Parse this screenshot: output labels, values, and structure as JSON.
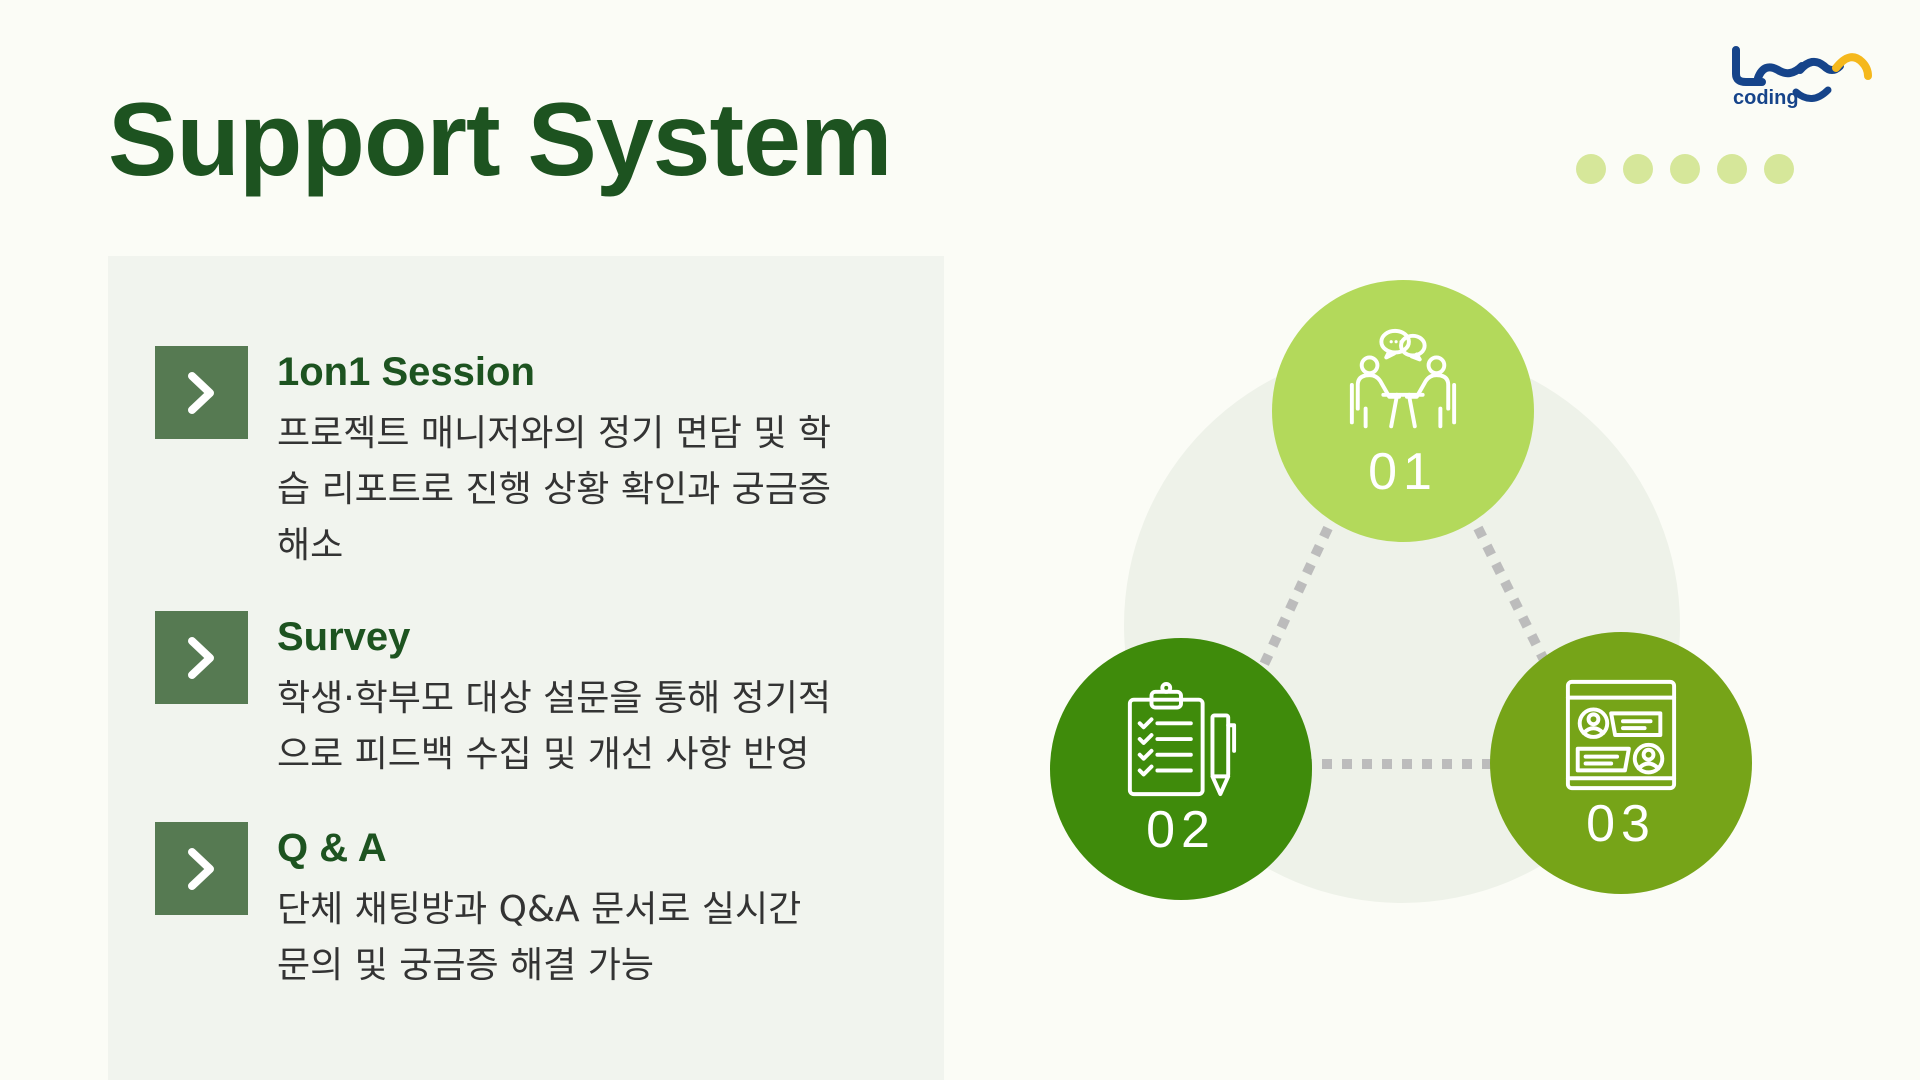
{
  "title": "Support System",
  "logo": {
    "text": "coding",
    "colors": {
      "blue": "#16448a",
      "orange": "#f5b81c"
    }
  },
  "items": [
    {
      "title": "1on1 Session",
      "desc_lines": [
        "프로젝트 매니저와의 정기 면담 및 학",
        "습 리포트로 진행 상황 확인과 궁금증",
        "해소"
      ]
    },
    {
      "title": "Survey",
      "desc_lines": [
        "학생·학부모 대상 설문을 통해 정기적",
        "으로 피드백 수집 및 개선 사항 반영"
      ]
    },
    {
      "title": "Q & A",
      "desc_lines": [
        "단체 채팅방과 Q&A 문서로 실시간",
        "문의 및 궁금증 해결 가능"
      ]
    }
  ],
  "nodes": [
    {
      "number": "01",
      "icon": "meeting-icon",
      "color": "#b3d95b"
    },
    {
      "number": "02",
      "icon": "checklist-icon",
      "color": "#3f8b0b"
    },
    {
      "number": "03",
      "icon": "feedback-board-icon",
      "color": "#76a418"
    }
  ],
  "colors": {
    "title": "#1d5320",
    "chevron_box": "#567a52",
    "panel": "#f1f4ee",
    "dots": "#d6e79a"
  }
}
